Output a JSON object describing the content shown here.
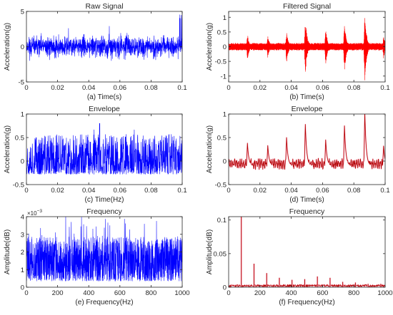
{
  "figure": {
    "background": "#ffffff",
    "axis_color": "#262626"
  },
  "chart_data": [
    {
      "id": "a",
      "type": "line",
      "title": "Raw Signal",
      "xlabel": "(a) Time(s)",
      "ylabel": "Acceleration(g)",
      "xlim": [
        0,
        0.1
      ],
      "ylim": [
        -5,
        5
      ],
      "xticks": [
        "0",
        "0.02",
        "0.04",
        "0.06",
        "0.08",
        "0.1"
      ],
      "yticks": [
        "-5",
        "0",
        "5"
      ],
      "grid": false,
      "series": [
        {
          "color": "#0000ff",
          "description": "dense noisy vibration signal, mostly within -2.5..3, peaks up to about 4.5 near t=0.1"
        }
      ]
    },
    {
      "id": "b",
      "type": "line",
      "title": "Filtered Signal",
      "xlabel": "(b) Time(s)",
      "ylabel": "Acceleration(g)",
      "xlim": [
        0,
        0.1
      ],
      "ylim": [
        -1.2,
        1.2
      ],
      "xticks": [
        "0",
        "0.02",
        "0.04",
        "0.06",
        "0.08",
        "0.1"
      ],
      "yticks": [
        "-1",
        "-0.5",
        "0",
        "0.5",
        "1"
      ],
      "grid": false,
      "series": [
        {
          "color": "#ff0000",
          "description": "band-pass filtered signal, baseline within ±0.2 with periodic impulses"
        }
      ],
      "impulses": [
        {
          "t": 0.012,
          "max": 0.45,
          "min": -0.4
        },
        {
          "t": 0.025,
          "max": 0.4,
          "min": -0.35
        },
        {
          "t": 0.037,
          "max": 0.55,
          "min": -0.5
        },
        {
          "t": 0.049,
          "max": 1.0,
          "min": -0.85
        },
        {
          "t": 0.062,
          "max": 0.65,
          "min": -0.55
        },
        {
          "t": 0.074,
          "max": 0.9,
          "min": -0.75
        },
        {
          "t": 0.087,
          "max": 1.2,
          "min": -1.1
        },
        {
          "t": 0.099,
          "max": 0.4,
          "min": -0.35
        }
      ]
    },
    {
      "id": "c",
      "type": "line",
      "title": "Envelope",
      "xlabel": "(c) Time(Hz)",
      "ylabel": "Acceleration(g)",
      "xlim": [
        0,
        0.1
      ],
      "ylim": [
        -0.5,
        1
      ],
      "xticks": [
        "0",
        "0.02",
        "0.04",
        "0.06",
        "0.08",
        "0.1"
      ],
      "yticks": [
        "-0.5",
        "0",
        "0.5",
        "1"
      ],
      "grid": false,
      "series": [
        {
          "color": "#0000ff",
          "description": "noisy envelope, mostly between -0.3 and 0.55, max about 0.8 near t=0.047"
        }
      ]
    },
    {
      "id": "d",
      "type": "line",
      "title": "Envelope",
      "xlabel": "(d) Time(s)",
      "ylabel": "Acceleration(g)",
      "xlim": [
        0,
        0.1
      ],
      "ylim": [
        -0.5,
        1
      ],
      "xticks": [
        "0",
        "0.02",
        "0.04",
        "0.06",
        "0.08",
        "0.1"
      ],
      "yticks": [
        "-0.5",
        "0",
        "0.5",
        "1"
      ],
      "grid": false,
      "series": [
        {
          "color": "#b00000",
          "description": "envelope of filtered signal, baseline about -0.1 with periodic peaks"
        }
      ],
      "peaks": [
        {
          "t": 0.012,
          "v": 0.38
        },
        {
          "t": 0.025,
          "v": 0.33
        },
        {
          "t": 0.037,
          "v": 0.5
        },
        {
          "t": 0.049,
          "v": 0.78
        },
        {
          "t": 0.062,
          "v": 0.45
        },
        {
          "t": 0.074,
          "v": 0.75
        },
        {
          "t": 0.087,
          "v": 1.03
        },
        {
          "t": 0.099,
          "v": 0.32
        }
      ]
    },
    {
      "id": "e",
      "type": "line",
      "title": "Frequency",
      "xlabel": "(e) Frequency(Hz)",
      "ylabel": "Amplitude(dB)",
      "xlim": [
        0,
        1000
      ],
      "ylim": [
        0,
        4
      ],
      "xticks": [
        "0",
        "200",
        "400",
        "600",
        "800",
        "1000"
      ],
      "yticks": [
        "0",
        "1",
        "2",
        "3",
        "4"
      ],
      "y_multiplier": "×10",
      "y_multiplier_exp": "−3",
      "grid": false,
      "series": [
        {
          "color": "#0000ff",
          "description": "broadband noise spectrum, values mostly 0.3-3.0 (×1e-3), peaks up to 4"
        }
      ]
    },
    {
      "id": "f",
      "type": "bar",
      "title": "Frequency",
      "xlabel": "(f) Frequency(Hz)",
      "ylabel": "Amplitude(dB)",
      "xlim": [
        0,
        1000
      ],
      "ylim": [
        0,
        0.105
      ],
      "xticks": [
        "0",
        "200",
        "400",
        "600",
        "800",
        "1000"
      ],
      "yticks": [
        "0",
        "0.05",
        "0.1"
      ],
      "grid": false,
      "series": [
        {
          "color": "#b00000",
          "description": "envelope spectrum with harmonics of about 81 Hz fault frequency"
        }
      ],
      "harmonics": [
        {
          "f": 81,
          "a": 0.105
        },
        {
          "f": 162,
          "a": 0.035
        },
        {
          "f": 243,
          "a": 0.021
        },
        {
          "f": 324,
          "a": 0.014
        },
        {
          "f": 405,
          "a": 0.011
        },
        {
          "f": 486,
          "a": 0.012
        },
        {
          "f": 567,
          "a": 0.016
        },
        {
          "f": 648,
          "a": 0.014
        },
        {
          "f": 729,
          "a": 0.008
        },
        {
          "f": 810,
          "a": 0.007
        },
        {
          "f": 891,
          "a": 0.005
        },
        {
          "f": 972,
          "a": 0.005
        }
      ]
    }
  ]
}
